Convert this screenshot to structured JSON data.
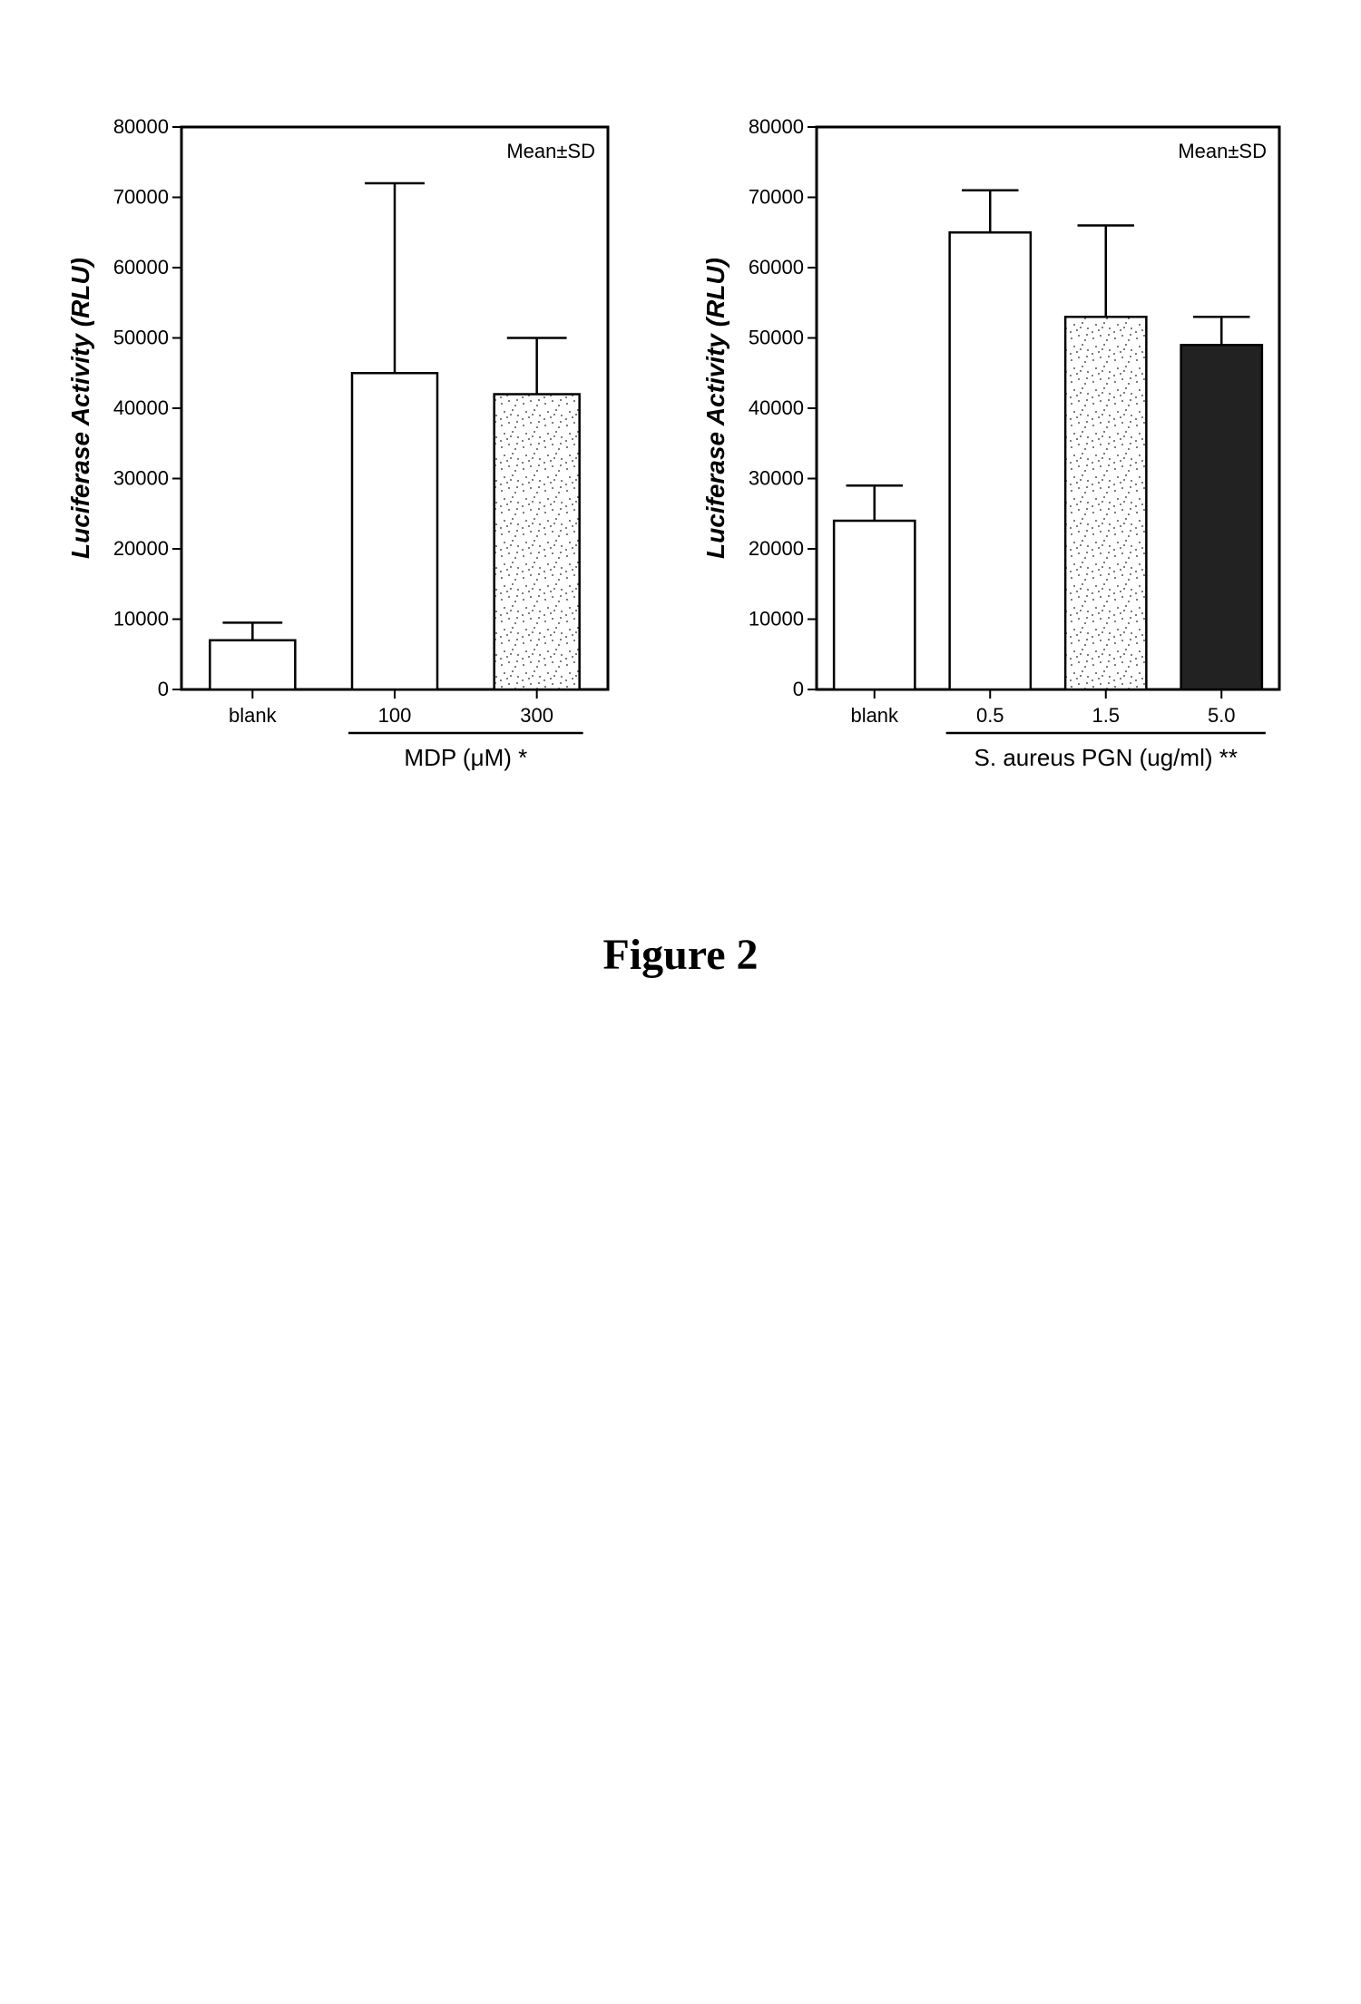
{
  "figure_caption": "Figure 2",
  "left_chart": {
    "type": "bar",
    "title": "Luciferase Activity (RLU)",
    "legend_text": "Mean±SD",
    "xlabel": "MDP (μM) *",
    "ylim": [
      0,
      80000
    ],
    "ytick_step": 10000,
    "yticks": [
      "0",
      "10000",
      "20000",
      "30000",
      "40000",
      "50000",
      "60000",
      "70000",
      "80000"
    ],
    "categories": [
      "blank",
      "100",
      "300"
    ],
    "values": [
      7000,
      45000,
      42000
    ],
    "errors": [
      2500,
      27000,
      8000
    ],
    "bar_fills": [
      "#ffffff",
      "#ffffff",
      "speckle"
    ],
    "bar_width": 0.6,
    "background_color": "#ffffff",
    "axis_color": "#000000",
    "tick_fontsize": 22,
    "label_fontsize": 26,
    "title_fontsize": 28,
    "underline_start_idx": 1
  },
  "right_chart": {
    "type": "bar",
    "title": "Luciferase Activity (RLU)",
    "legend_text": "Mean±SD",
    "xlabel": "S. aureus PGN (ug/ml) **",
    "ylim": [
      0,
      80000
    ],
    "ytick_step": 10000,
    "yticks": [
      "0",
      "10000",
      "20000",
      "30000",
      "40000",
      "50000",
      "60000",
      "70000",
      "80000"
    ],
    "categories": [
      "blank",
      "0.5",
      "1.5",
      "5.0"
    ],
    "values": [
      24000,
      65000,
      53000,
      49000
    ],
    "errors": [
      5000,
      6000,
      13000,
      4000
    ],
    "bar_fills": [
      "#ffffff",
      "#ffffff",
      "speckle",
      "#222222"
    ],
    "bar_width": 0.7,
    "background_color": "#ffffff",
    "axis_color": "#000000",
    "tick_fontsize": 22,
    "label_fontsize": 26,
    "title_fontsize": 28,
    "underline_start_idx": 1
  },
  "colors": {
    "stroke": "#000000",
    "speckle": "#555555"
  }
}
